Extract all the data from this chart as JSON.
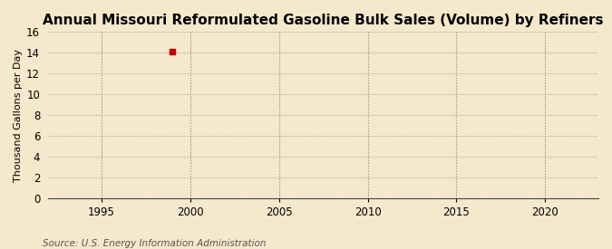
{
  "title": "Annual Missouri Reformulated Gasoline Bulk Sales (Volume) by Refiners",
  "ylabel": "Thousand Gallons per Day",
  "source": "Source: U.S. Energy Information Administration",
  "background_color": "#f5e8cc",
  "plot_bg_color": "#f5e8cc",
  "data_x": [
    1999
  ],
  "data_y": [
    14.1
  ],
  "marker_color": "#cc0000",
  "marker_size": 4,
  "xlim": [
    1992,
    2023
  ],
  "ylim": [
    0,
    16
  ],
  "xticks": [
    1995,
    2000,
    2005,
    2010,
    2015,
    2020
  ],
  "yticks": [
    0,
    2,
    4,
    6,
    8,
    10,
    12,
    14,
    16
  ],
  "grid_color": "#999999",
  "title_fontsize": 11,
  "axis_fontsize": 8,
  "tick_fontsize": 8.5,
  "source_fontsize": 7.5
}
